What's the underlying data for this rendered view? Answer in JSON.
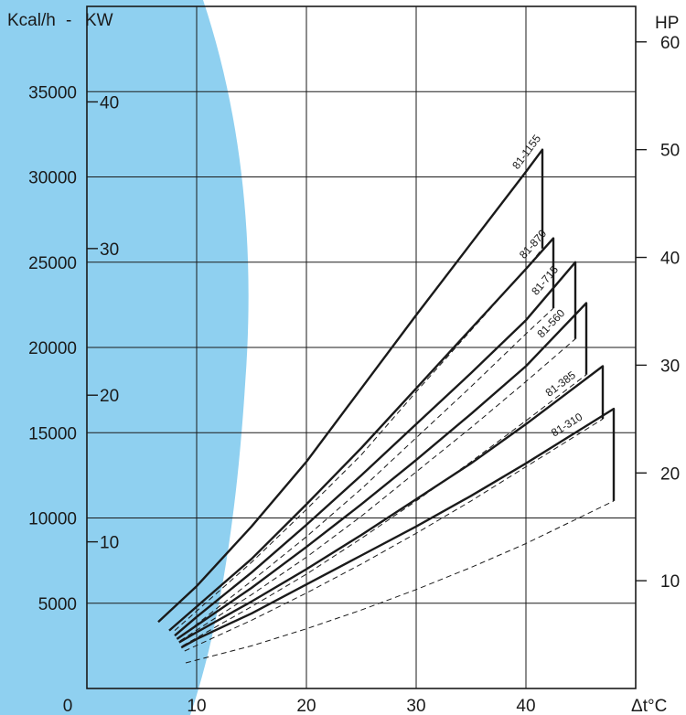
{
  "colors": {
    "background_blob": "#8fd0f0",
    "grid": "#1a1a1a",
    "curve": "#1a1a1a"
  },
  "chart_data": {
    "type": "line",
    "title": "",
    "xlabel": "Δt°C",
    "ylabel_left": "Kcal/h",
    "ylabel_kw": "KW",
    "ylabel_right": "HP",
    "xlim": [
      0,
      50
    ],
    "ylim": [
      0,
      40000
    ],
    "x_ticks": [
      "0",
      "10",
      "20",
      "30",
      "40"
    ],
    "y_ticks_kcal": [
      "5000",
      "10000",
      "15000",
      "20000",
      "25000",
      "30000",
      "35000"
    ],
    "y_ticks_kw": [
      "10",
      "20",
      "30",
      "40"
    ],
    "y_ticks_hp": [
      "10",
      "20",
      "30",
      "40",
      "50",
      "60"
    ],
    "grid": true,
    "series": [
      {
        "name": "81-1155",
        "upper": [
          [
            6.5,
            3900
          ],
          [
            10,
            6000
          ],
          [
            15,
            9500
          ],
          [
            20,
            13300
          ],
          [
            25,
            17600
          ],
          [
            30,
            21900
          ],
          [
            35,
            26100
          ],
          [
            40,
            30300
          ],
          [
            41.5,
            31600
          ]
        ],
        "lower": [
          [
            8,
            3400
          ],
          [
            15,
            7400
          ],
          [
            20,
            10500
          ],
          [
            25,
            13700
          ],
          [
            30,
            17400
          ],
          [
            35,
            21000
          ],
          [
            40,
            24600
          ],
          [
            41.5,
            25800
          ]
        ]
      },
      {
        "name": "81-870",
        "upper": [
          [
            7.5,
            3400
          ],
          [
            10,
            4800
          ],
          [
            15,
            7600
          ],
          [
            20,
            10800
          ],
          [
            25,
            14100
          ],
          [
            30,
            17600
          ],
          [
            35,
            21100
          ],
          [
            40,
            24600
          ],
          [
            42.5,
            26400
          ]
        ],
        "lower": [
          [
            8.5,
            3000
          ],
          [
            15,
            6300
          ],
          [
            20,
            8900
          ],
          [
            25,
            11700
          ],
          [
            30,
            14700
          ],
          [
            35,
            17700
          ],
          [
            40,
            20800
          ],
          [
            42.5,
            22300
          ]
        ]
      },
      {
        "name": "81-715",
        "upper": [
          [
            8,
            3100
          ],
          [
            10,
            4200
          ],
          [
            15,
            6800
          ],
          [
            20,
            9600
          ],
          [
            25,
            12500
          ],
          [
            30,
            15500
          ],
          [
            35,
            18500
          ],
          [
            40,
            21600
          ],
          [
            44.5,
            25000
          ]
        ],
        "lower": [
          [
            8.5,
            2800
          ],
          [
            15,
            5500
          ],
          [
            20,
            7700
          ],
          [
            25,
            10100
          ],
          [
            30,
            12700
          ],
          [
            35,
            15300
          ],
          [
            40,
            18000
          ],
          [
            44.5,
            20500
          ]
        ]
      },
      {
        "name": "81-560",
        "upper": [
          [
            8.2,
            2900
          ],
          [
            10,
            3700
          ],
          [
            15,
            5900
          ],
          [
            20,
            8300
          ],
          [
            25,
            10800
          ],
          [
            30,
            13400
          ],
          [
            35,
            16100
          ],
          [
            40,
            18900
          ],
          [
            45.5,
            22600
          ]
        ],
        "lower": [
          [
            8.7,
            2500
          ],
          [
            15,
            4800
          ],
          [
            20,
            6700
          ],
          [
            25,
            8800
          ],
          [
            30,
            11000
          ],
          [
            35,
            13300
          ],
          [
            40,
            15700
          ],
          [
            45.5,
            18400
          ]
        ]
      },
      {
        "name": "81-385",
        "upper": [
          [
            8.4,
            2700
          ],
          [
            10,
            3300
          ],
          [
            15,
            5100
          ],
          [
            20,
            7000
          ],
          [
            25,
            9000
          ],
          [
            30,
            11100
          ],
          [
            35,
            13200
          ],
          [
            40,
            15500
          ],
          [
            47,
            18900
          ]
        ],
        "lower": [
          [
            8.9,
            2200
          ],
          [
            15,
            4000
          ],
          [
            20,
            5600
          ],
          [
            25,
            7300
          ],
          [
            30,
            9100
          ],
          [
            35,
            11000
          ],
          [
            40,
            13000
          ],
          [
            47,
            15800
          ]
        ]
      },
      {
        "name": "81-310",
        "upper": [
          [
            8.6,
            2400
          ],
          [
            10,
            2900
          ],
          [
            15,
            4400
          ],
          [
            20,
            6100
          ],
          [
            25,
            7800
          ],
          [
            30,
            9500
          ],
          [
            35,
            11300
          ],
          [
            40,
            13200
          ],
          [
            48,
            16400
          ]
        ],
        "lower": [
          [
            9,
            1500
          ],
          [
            15,
            2500
          ],
          [
            20,
            3500
          ],
          [
            25,
            4600
          ],
          [
            30,
            5800
          ],
          [
            35,
            7100
          ],
          [
            40,
            8500
          ],
          [
            48,
            11000
          ]
        ]
      }
    ]
  }
}
